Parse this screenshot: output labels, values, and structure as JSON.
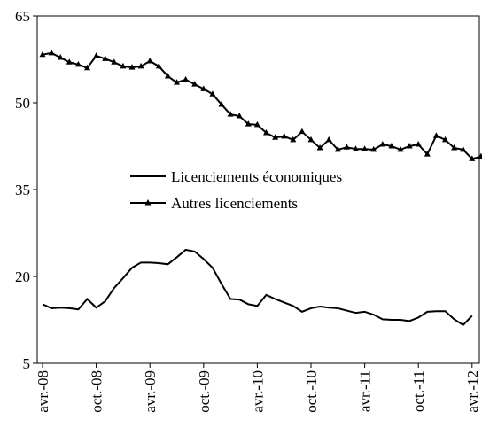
{
  "chart_data": {
    "type": "line",
    "categories": [
      "avr.-08",
      null,
      null,
      null,
      null,
      null,
      "oct.-08",
      null,
      null,
      null,
      null,
      null,
      "avr.-09",
      null,
      null,
      null,
      null,
      null,
      "oct.-09",
      null,
      null,
      null,
      null,
      null,
      "avr.-10",
      null,
      null,
      null,
      null,
      null,
      "oct.-10",
      null,
      null,
      null,
      null,
      null,
      "avr.-11",
      null,
      null,
      null,
      null,
      null,
      "oct.-11",
      null,
      null,
      null,
      null,
      null,
      "avr.-12",
      null
    ],
    "series": [
      {
        "name": "Licenciements économiques",
        "color": "#000000",
        "marker": "none",
        "values": [
          15.2,
          14.5,
          14.6,
          14.5,
          14.3,
          16.1,
          14.6,
          15.7,
          18.0,
          19.7,
          21.5,
          22.4,
          22.4,
          22.3,
          22.1,
          23.3,
          24.6,
          24.3,
          23.0,
          21.5,
          18.7,
          16.1,
          16.0,
          15.2,
          14.9,
          16.8,
          16.1,
          15.5,
          14.9,
          13.9,
          14.5,
          14.8,
          14.6,
          14.5,
          14.1,
          13.7,
          13.9,
          13.4,
          12.6,
          12.5,
          12.5,
          12.3,
          12.9,
          13.9,
          14.0,
          14.0,
          12.6,
          11.6,
          13.2,
          null
        ]
      },
      {
        "name": "Autres licenciements",
        "color": "#000000",
        "marker": "triangle",
        "values": [
          58.3,
          58.6,
          57.8,
          57.0,
          56.6,
          56.0,
          58.1,
          57.6,
          57.0,
          56.3,
          56.1,
          56.3,
          57.2,
          56.3,
          54.6,
          53.5,
          54.0,
          53.2,
          52.4,
          51.5,
          49.7,
          48.0,
          47.7,
          46.3,
          46.2,
          44.8,
          44.0,
          44.2,
          43.6,
          45.0,
          43.6,
          42.2,
          43.6,
          41.9,
          42.3,
          42.0,
          42.0,
          41.9,
          42.8,
          42.5,
          41.9,
          42.5,
          42.8,
          41.1,
          44.3,
          43.6,
          42.2,
          41.9,
          40.3,
          40.7
        ]
      }
    ],
    "ylim": [
      5,
      65
    ],
    "yticks": [
      5,
      20,
      35,
      50,
      65
    ],
    "grid": false,
    "legend": "center-left"
  }
}
